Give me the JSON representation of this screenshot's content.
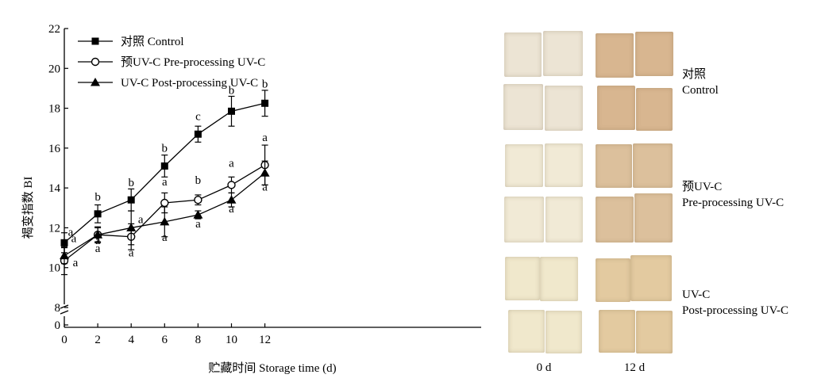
{
  "chart_data": {
    "type": "line",
    "xlabel": "贮藏时间 Storage time (d)",
    "ylabel": "褐变指数 BI",
    "x": [
      0,
      2,
      4,
      6,
      8,
      10,
      12
    ],
    "x_ticks": [
      "0",
      "2",
      "4",
      "6",
      "8",
      "10",
      "12"
    ],
    "y_ticks": [
      "0",
      "8",
      "10",
      "12",
      "14",
      "16",
      "18",
      "20",
      "22"
    ],
    "ylim": [
      8,
      22
    ],
    "axis_break": true,
    "legend_position": "top-left",
    "series": [
      {
        "name": "对照 Control",
        "marker": "square-filled",
        "values": [
          11.25,
          12.7,
          13.4,
          15.1,
          16.7,
          17.85,
          18.25
        ],
        "errors": [
          0.5,
          0.45,
          0.55,
          0.55,
          0.4,
          0.75,
          0.65
        ],
        "letters": [
          "a",
          "b",
          "b",
          "b",
          "c",
          "b",
          "b"
        ]
      },
      {
        "name": "预UV-C Pre-processing UV-C",
        "marker": "circle-open",
        "values": [
          10.35,
          11.65,
          11.55,
          13.25,
          13.4,
          14.15,
          15.15
        ],
        "errors": [
          0.7,
          0.35,
          0.65,
          0.5,
          0.25,
          0.4,
          1.0
        ],
        "letters": [
          "a",
          "a",
          "a",
          "a",
          "b",
          "a",
          "a"
        ]
      },
      {
        "name": "UV-C   Post-processing UV-C",
        "marker": "triangle-filled",
        "values": [
          10.6,
          11.65,
          12.0,
          12.3,
          12.65,
          13.4,
          14.75
        ],
        "errors": [
          0.4,
          0.4,
          0.85,
          0.75,
          0.2,
          0.35,
          0.6
        ],
        "letters": [
          "a",
          "a",
          "a",
          "a",
          "a",
          "a",
          "a"
        ]
      }
    ]
  },
  "photos": {
    "columns": [
      "0 d",
      "12 d"
    ],
    "rows": [
      {
        "label_cn": "对照",
        "label_en": "Control",
        "color_0d": "#ece4d4",
        "color_12d": "#d8b690"
      },
      {
        "label_cn": "预UV-C",
        "label_en": "Pre-processing UV-C",
        "color_0d": "#f1ead6",
        "color_12d": "#dcc09c"
      },
      {
        "label_cn": "UV-C",
        "label_en": "Post-processing UV-C",
        "color_0d": "#f0e8cc",
        "color_12d": "#e3caa0"
      }
    ]
  }
}
